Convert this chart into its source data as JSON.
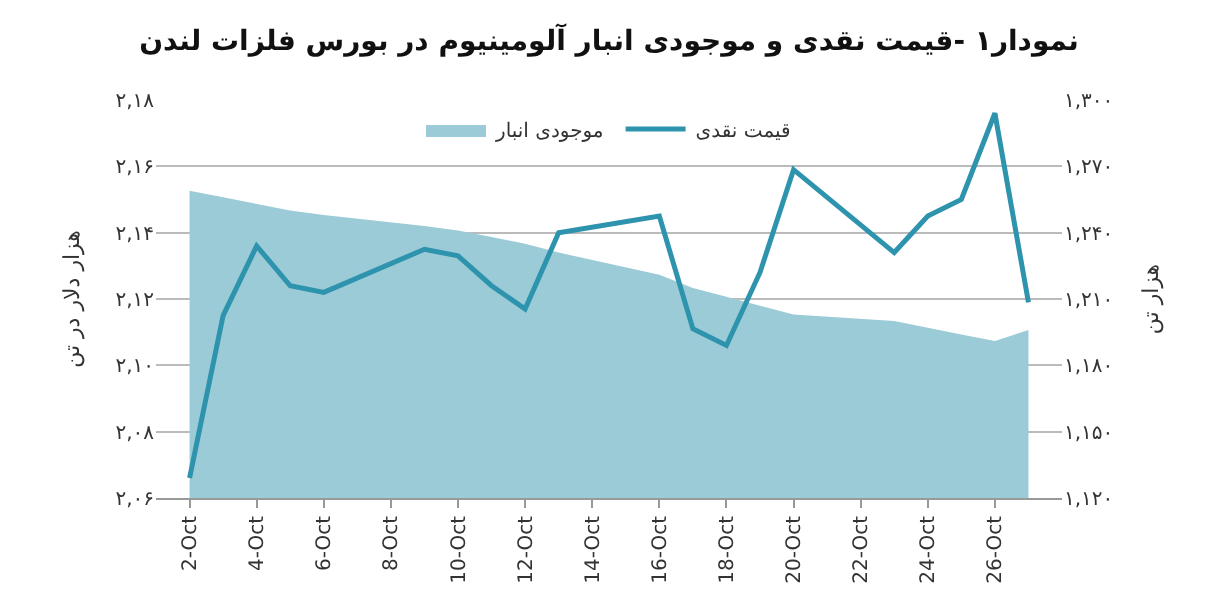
{
  "chart_data": {
    "type": "line",
    "title": "نمودار۱ -قیمت نقدی و موجودی انبار آلومینیوم در بورس فلزات لندن",
    "ylabel": "هزار دلار در تن",
    "y2label": "هزار تن",
    "x": [
      "--10-02",
      "--10-03",
      "--10-04",
      "--10-05",
      "--10-06",
      "--10-09",
      "--10-10",
      "--10-11",
      "--10-12",
      "--10-13",
      "--10-16",
      "--10-17",
      "--10-18",
      "--10-19",
      "--10-20",
      "--10-23",
      "--10-24",
      "--10-25",
      "--10-26",
      "--10-27"
    ],
    "series": [
      {
        "name": "موجودی انبار",
        "type": "area",
        "axis": "y2",
        "color": "#9ccbd8",
        "values": [
          1.259,
          1.256,
          1.253,
          1.25,
          1.248,
          1.243,
          1.241,
          1.238,
          1.235,
          1.231,
          1.221,
          1.215,
          1.211,
          1.207,
          1.203,
          1.2,
          1.197,
          1.194,
          1.191,
          1.196
        ]
      },
      {
        "name": "قیمت نقدی",
        "axis": "y",
        "color": "#2e93ad",
        "values": [
          2.066,
          2.115,
          2.136,
          2.124,
          2.122,
          2.135,
          2.133,
          2.124,
          2.117,
          2.14,
          2.145,
          2.111,
          2.106,
          2.128,
          2.159,
          2.134,
          2.145,
          2.15,
          2.176,
          2.119
        ]
      }
    ],
    "xlim": [
      "--10-01",
      "--10-28"
    ],
    "xticks": [
      {
        "value": "--10-02",
        "label": "2-Oct"
      },
      {
        "value": "--10-04",
        "label": "4-Oct"
      },
      {
        "value": "--10-06",
        "label": "6-Oct"
      },
      {
        "value": "--10-08",
        "label": "8-Oct"
      },
      {
        "value": "--10-10",
        "label": "10-Oct"
      },
      {
        "value": "--10-12",
        "label": "12-Oct"
      },
      {
        "value": "--10-14",
        "label": "14-Oct"
      },
      {
        "value": "--10-16",
        "label": "16-Oct"
      },
      {
        "value": "--10-18",
        "label": "18-Oct"
      },
      {
        "value": "--10-20",
        "label": "20-Oct"
      },
      {
        "value": "--10-22",
        "label": "22-Oct"
      },
      {
        "value": "--10-24",
        "label": "24-Oct"
      },
      {
        "value": "--10-26",
        "label": "26-Oct"
      }
    ],
    "ylim": [
      2.06,
      2.18
    ],
    "yticks": [
      {
        "value": 2.06,
        "label": "۲,۰۶"
      },
      {
        "value": 2.08,
        "label": "۲,۰۸"
      },
      {
        "value": 2.1,
        "label": "۲,۱۰"
      },
      {
        "value": 2.12,
        "label": "۲,۱۲"
      },
      {
        "value": 2.14,
        "label": "۲,۱۴"
      },
      {
        "value": 2.16,
        "label": "۲,۱۶"
      },
      {
        "value": 2.18,
        "label": "۲,۱۸"
      }
    ],
    "y2lim": [
      1.12,
      1.3
    ],
    "y2ticks": [
      {
        "value": 1.12,
        "label": "۱,۱۲۰"
      },
      {
        "value": 1.15,
        "label": "۱,۱۵۰"
      },
      {
        "value": 1.18,
        "label": "۱,۱۸۰"
      },
      {
        "value": 1.21,
        "label": "۱,۲۱۰"
      },
      {
        "value": 1.24,
        "label": "۱,۲۴۰"
      },
      {
        "value": 1.27,
        "label": "۱,۲۷۰"
      },
      {
        "value": 1.3,
        "label": "۱,۳۰۰"
      }
    ],
    "grid": "y",
    "legend": "top",
    "marker": "none",
    "line_style": "solid"
  }
}
